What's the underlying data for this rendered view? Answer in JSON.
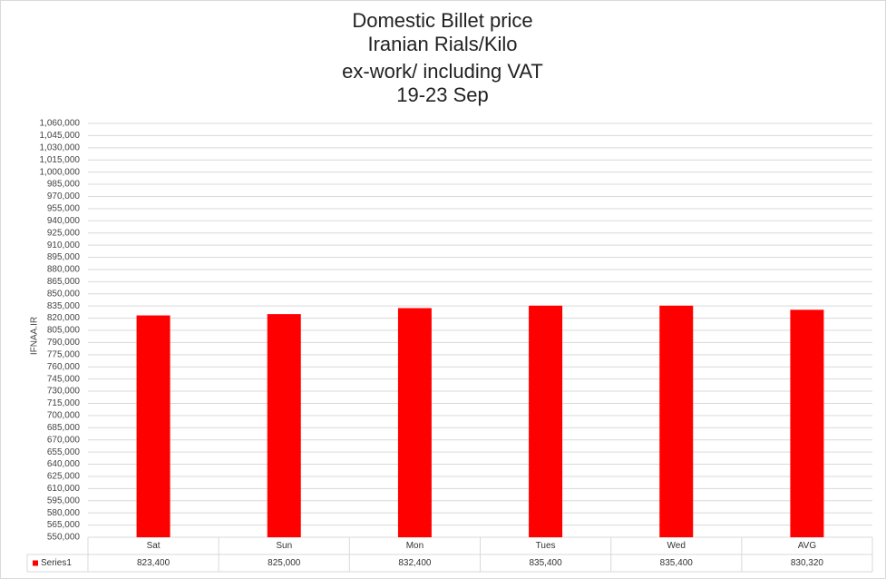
{
  "chart_data": {
    "type": "bar",
    "title": [
      "Domestic Billet price",
      "Iranian Rials/Kilo",
      "ex-work/ including VAT",
      "19-23 Sep"
    ],
    "y_label": "IFNAA.IR",
    "categories": [
      "Sat",
      "Sun",
      "Mon",
      "Tues",
      "Wed",
      "AVG"
    ],
    "series": [
      {
        "name": "Series1",
        "color": "#ff0000",
        "values": [
          823400,
          825000,
          832400,
          835400,
          835400,
          830320
        ],
        "value_labels": [
          "823,400",
          "825,000",
          "832,400",
          "835,400",
          "835,400",
          "830,320"
        ]
      }
    ],
    "ylim": [
      550000,
      1060000
    ],
    "yticks": [
      {
        "value": 550000,
        "label": "550,000"
      },
      {
        "value": 565000,
        "label": "565,000"
      },
      {
        "value": 580000,
        "label": "580,000"
      },
      {
        "value": 595000,
        "label": "595,000"
      },
      {
        "value": 610000,
        "label": "610,000"
      },
      {
        "value": 625000,
        "label": "625,000"
      },
      {
        "value": 640000,
        "label": "640,000"
      },
      {
        "value": 655000,
        "label": "655,000"
      },
      {
        "value": 670000,
        "label": "670,000"
      },
      {
        "value": 685000,
        "label": "685,000"
      },
      {
        "value": 700000,
        "label": "700,000"
      },
      {
        "value": 715000,
        "label": "715,000"
      },
      {
        "value": 730000,
        "label": "730,000"
      },
      {
        "value": 745000,
        "label": "745,000"
      },
      {
        "value": 760000,
        "label": "760,000"
      },
      {
        "value": 775000,
        "label": "775,000"
      },
      {
        "value": 790000,
        "label": "790,000"
      },
      {
        "value": 805000,
        "label": "805,000"
      },
      {
        "value": 820000,
        "label": "820,000"
      },
      {
        "value": 835000,
        "label": "835,000"
      },
      {
        "value": 850000,
        "label": "850,000"
      },
      {
        "value": 865000,
        "label": "865,000"
      },
      {
        "value": 880000,
        "label": "880,000"
      },
      {
        "value": 895000,
        "label": "895,000"
      },
      {
        "value": 910000,
        "label": "910,000"
      },
      {
        "value": 925000,
        "label": "925,000"
      },
      {
        "value": 940000,
        "label": "940,000"
      },
      {
        "value": 955000,
        "label": "955,000"
      },
      {
        "value": 970000,
        "label": "970,000"
      },
      {
        "value": 985000,
        "label": "985,000"
      },
      {
        "value": 1000000,
        "label": "1,000,000"
      },
      {
        "value": 1015000,
        "label": "1,015,000"
      },
      {
        "value": 1030000,
        "label": "1,030,000"
      },
      {
        "value": 1045000,
        "label": "1,045,000"
      },
      {
        "value": 1060000,
        "label": "1,060,000"
      }
    ],
    "grid": true
  }
}
